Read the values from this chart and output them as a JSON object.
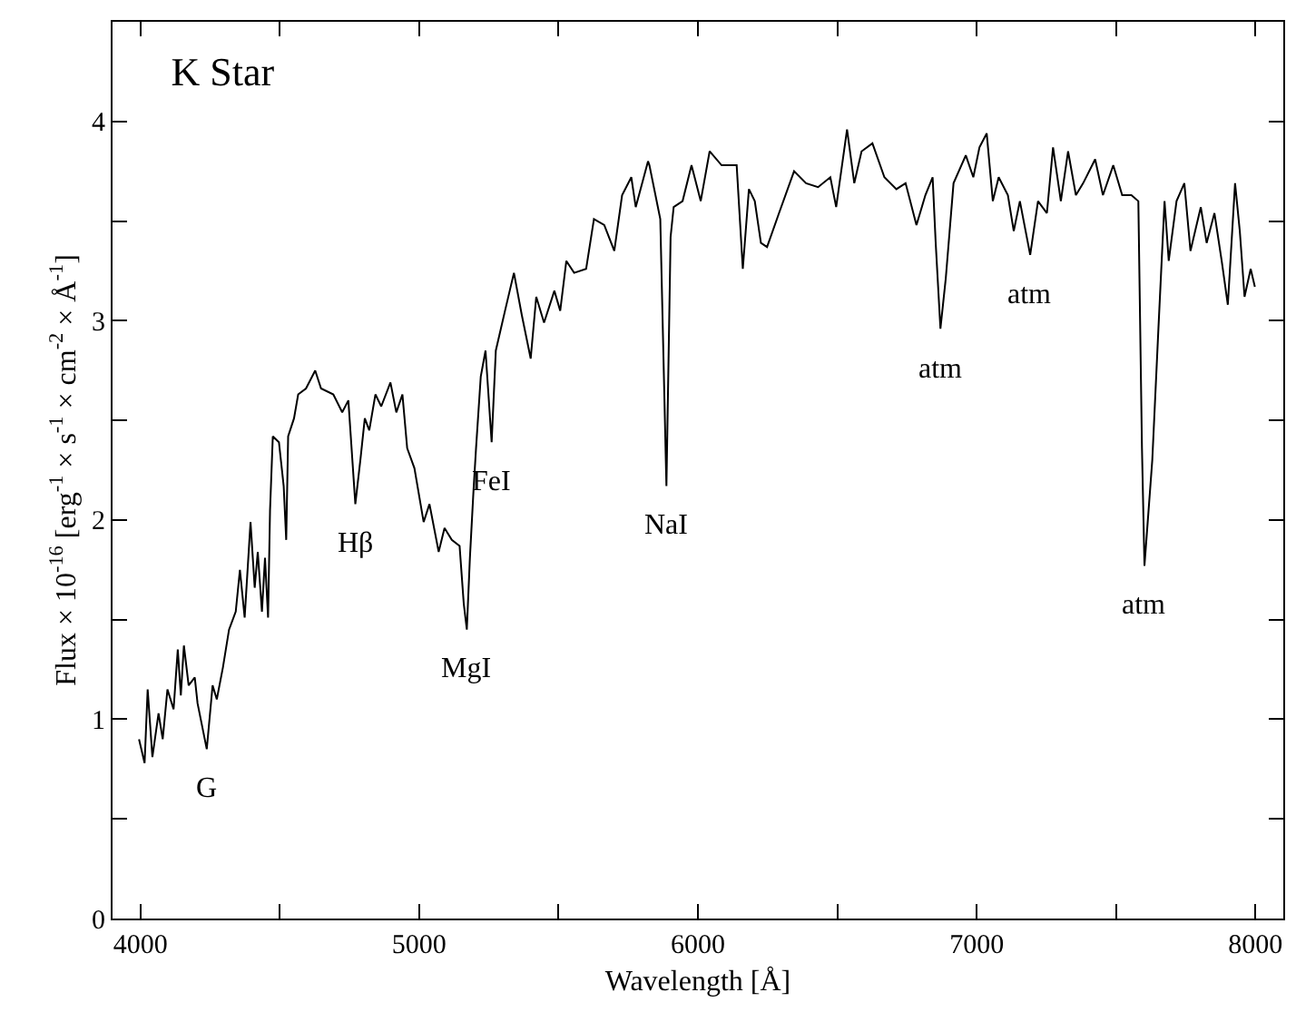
{
  "chart_data": {
    "type": "line",
    "title": "K Star",
    "xlabel": "Wavelength [Å]",
    "ylabel": "Flux × 10$^{-16}$ [erg$^{-1}$ × s$^{-1}$ × cm$^{-2}$ × Å$^{-1}$]",
    "x": [
      3995,
      4015,
      4026,
      4043,
      4065,
      4080,
      4097,
      4119,
      4134,
      4145,
      4156,
      4173,
      4195,
      4205,
      4238,
      4259,
      4274,
      4296,
      4318,
      4342,
      4357,
      4374,
      4395,
      4410,
      4421,
      4436,
      4447,
      4458,
      4465,
      4475,
      4497,
      4514,
      4523,
      4530,
      4551,
      4566,
      4594,
      4627,
      4648,
      4692,
      4724,
      4746,
      4771,
      4789,
      4805,
      4821,
      4843,
      4864,
      4897,
      4918,
      4940,
      4957,
      4983,
      5005,
      5016,
      5037,
      5070,
      5091,
      5117,
      5145,
      5160,
      5171,
      5182,
      5195,
      5204,
      5221,
      5238,
      5260,
      5275,
      5308,
      5340,
      5368,
      5400,
      5420,
      5448,
      5485,
      5506,
      5528,
      5556,
      5599,
      5627,
      5664,
      5700,
      5728,
      5761,
      5777,
      5821,
      5826,
      5865,
      5887,
      5902,
      5913,
      5945,
      5977,
      6010,
      6042,
      6085,
      6139,
      6161,
      6183,
      6204,
      6226,
      6248,
      6291,
      6345,
      6388,
      6431,
      6475,
      6496,
      6535,
      6561,
      6587,
      6626,
      6669,
      6712,
      6745,
      6784,
      6816,
      6842,
      6853,
      6870,
      6889,
      6917,
      6961,
      6988,
      7010,
      7036,
      7058,
      7079,
      7112,
      7133,
      7155,
      7192,
      7220,
      7252,
      7274,
      7302,
      7328,
      7356,
      7382,
      7425,
      7453,
      7490,
      7522,
      7555,
      7580,
      7593,
      7602,
      7630,
      7652,
      7674,
      7689,
      7717,
      7745,
      7767,
      7804,
      7825,
      7853,
      7879,
      7901,
      7927,
      7944,
      7961,
      7983,
      7998
    ],
    "series": [
      {
        "color": "#000000",
        "values": [
          0.9,
          0.78,
          1.15,
          0.81,
          1.03,
          0.9,
          1.15,
          1.05,
          1.35,
          1.12,
          1.37,
          1.17,
          1.21,
          1.08,
          0.85,
          1.17,
          1.1,
          1.26,
          1.45,
          1.54,
          1.75,
          1.51,
          1.99,
          1.66,
          1.84,
          1.54,
          1.81,
          1.51,
          2.05,
          2.42,
          2.39,
          2.17,
          1.9,
          2.42,
          2.51,
          2.63,
          2.66,
          2.75,
          2.66,
          2.63,
          2.54,
          2.6,
          2.08,
          2.3,
          2.51,
          2.45,
          2.63,
          2.57,
          2.69,
          2.54,
          2.63,
          2.36,
          2.26,
          2.08,
          1.99,
          2.08,
          1.84,
          1.96,
          1.9,
          1.87,
          1.58,
          1.45,
          1.81,
          2.15,
          2.36,
          2.72,
          2.85,
          2.39,
          2.85,
          3.05,
          3.24,
          3.03,
          2.81,
          3.12,
          2.99,
          3.15,
          3.05,
          3.3,
          3.24,
          3.26,
          3.51,
          3.48,
          3.35,
          3.63,
          3.72,
          3.57,
          3.8,
          3.78,
          3.51,
          2.17,
          3.42,
          3.57,
          3.6,
          3.78,
          3.6,
          3.85,
          3.78,
          3.78,
          3.26,
          3.66,
          3.6,
          3.39,
          3.37,
          3.54,
          3.75,
          3.69,
          3.67,
          3.72,
          3.57,
          3.96,
          3.69,
          3.85,
          3.89,
          3.72,
          3.66,
          3.69,
          3.48,
          3.63,
          3.72,
          3.39,
          2.96,
          3.21,
          3.69,
          3.83,
          3.72,
          3.87,
          3.94,
          3.6,
          3.72,
          3.63,
          3.45,
          3.6,
          3.33,
          3.6,
          3.54,
          3.87,
          3.6,
          3.85,
          3.63,
          3.69,
          3.81,
          3.63,
          3.78,
          3.63,
          3.63,
          3.6,
          2.36,
          1.77,
          2.3,
          2.96,
          3.6,
          3.3,
          3.6,
          3.69,
          3.35,
          3.57,
          3.39,
          3.54,
          3.3,
          3.08,
          3.69,
          3.45,
          3.12,
          3.26,
          3.17
        ]
      }
    ],
    "xlim": [
      3900,
      8100
    ],
    "ylim": [
      0,
      4.5
    ],
    "xticks": [
      4000,
      {
        "value": 4500,
        "label": null
      },
      5000,
      {
        "value": 5500,
        "label": null
      },
      6000,
      {
        "value": 6500,
        "label": null
      },
      7000,
      {
        "value": 7500,
        "label": null
      },
      8000
    ],
    "yticks": [
      0,
      {
        "value": 0.5,
        "label": null
      },
      1,
      {
        "value": 1.5,
        "label": null
      },
      2,
      {
        "value": 2.5,
        "label": null
      },
      3,
      {
        "value": 3.5,
        "label": null
      },
      4
    ],
    "annotations": [
      {
        "text": "G",
        "x": 4238,
        "y": 0.85
      },
      {
        "text": "Hβ",
        "x": 4771,
        "y": 2.08
      },
      {
        "text": "MgI",
        "x": 5171,
        "y": 1.45
      },
      {
        "text": "FeI",
        "x": 5260,
        "y": 2.39
      },
      {
        "text": "NaI",
        "x": 5887,
        "y": 2.17
      },
      {
        "text": "atm",
        "x": 6870,
        "y": 2.96
      },
      {
        "text": "atm",
        "x": 7192,
        "y": 3.33
      },
      {
        "text": "atm",
        "x": 7602,
        "y": 1.77
      }
    ],
    "marker": "none",
    "line_style": "solid"
  }
}
